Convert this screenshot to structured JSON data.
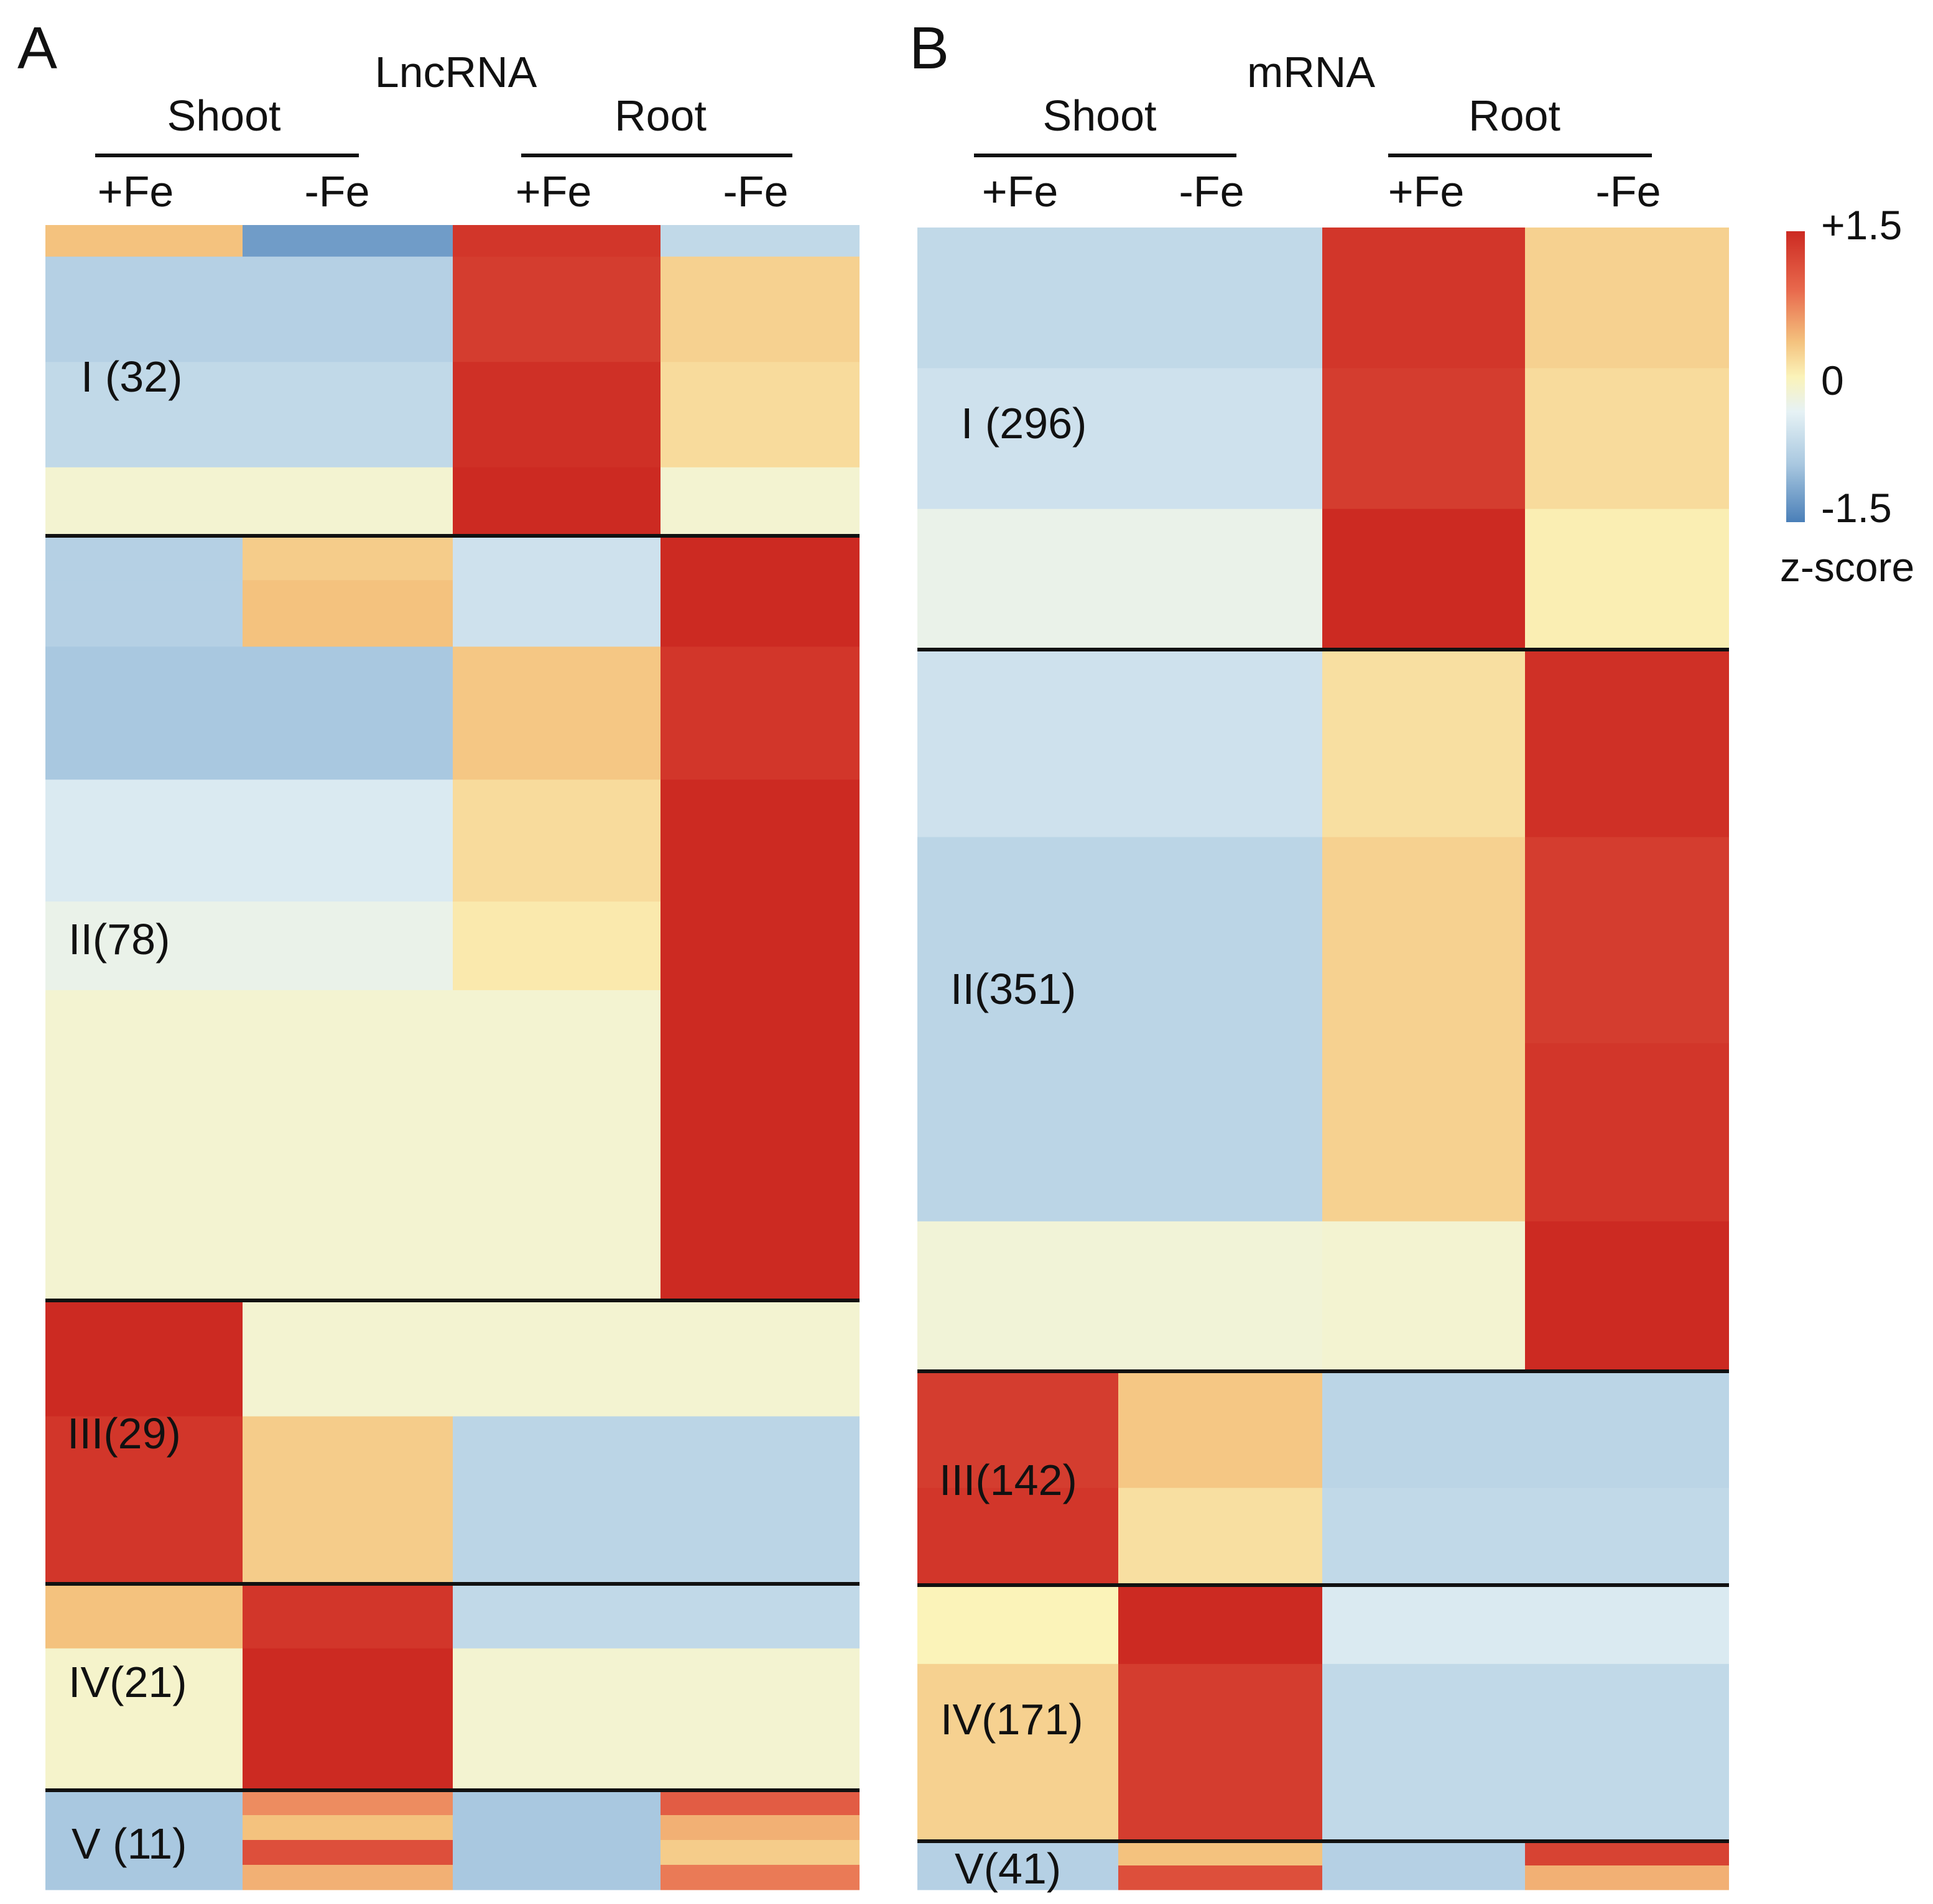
{
  "chart_data": [
    {
      "type": "heatmap",
      "panel_label": "A",
      "title": "LncRNA",
      "tissues": [
        "Shoot",
        "Root"
      ],
      "columns": [
        "+Fe",
        "-Fe",
        "+Fe",
        "-Fe"
      ],
      "clusters": [
        {
          "label": "I (32)",
          "count": 32,
          "values": [
            0.5,
            -1.3,
            1.4,
            0.2
          ]
        },
        {
          "label": "II(78)",
          "count": 78,
          "values": [
            -0.6,
            -0.6,
            0.2,
            1.5
          ]
        },
        {
          "label": "III(29)",
          "count": 29,
          "values": [
            1.5,
            0.3,
            -0.8,
            -0.8
          ]
        },
        {
          "label": "IV(21)",
          "count": 21,
          "values": [
            0.2,
            1.5,
            -0.5,
            -0.5
          ]
        },
        {
          "label": "V (11)",
          "count": 11,
          "values": [
            -1.0,
            1.0,
            -1.0,
            1.0
          ]
        }
      ],
      "rows": [
        {
          "cluster": 0,
          "weight": 12,
          "values": [
            0.5,
            -1.3,
            1.4,
            -0.8
          ]
        },
        {
          "cluster": 0,
          "weight": 40,
          "values": [
            -0.9,
            -0.9,
            1.35,
            0.35
          ]
        },
        {
          "cluster": 0,
          "weight": 40,
          "values": [
            -0.8,
            -0.8,
            1.45,
            0.25
          ]
        },
        {
          "cluster": 0,
          "weight": 26,
          "values": [
            -0.2,
            -0.2,
            1.5,
            -0.2
          ]
        },
        {
          "cluster": 1,
          "weight": 20,
          "values": [
            -0.9,
            0.4,
            -0.7,
            1.5
          ]
        },
        {
          "cluster": 1,
          "weight": 30,
          "values": [
            -0.9,
            0.5,
            -0.7,
            1.5
          ]
        },
        {
          "cluster": 1,
          "weight": 60,
          "values": [
            -1.0,
            -1.0,
            0.45,
            1.4
          ]
        },
        {
          "cluster": 1,
          "weight": 55,
          "values": [
            -0.6,
            -0.6,
            0.25,
            1.5
          ]
        },
        {
          "cluster": 1,
          "weight": 40,
          "values": [
            -0.4,
            -0.4,
            0.1,
            1.5
          ]
        },
        {
          "cluster": 1,
          "weight": 140,
          "values": [
            -0.2,
            -0.2,
            -0.2,
            1.5
          ]
        },
        {
          "cluster": 2,
          "weight": 45,
          "values": [
            1.5,
            -0.2,
            -0.2,
            -0.2
          ]
        },
        {
          "cluster": 2,
          "weight": 65,
          "values": [
            1.4,
            0.4,
            -0.85,
            -0.85
          ]
        },
        {
          "cluster": 3,
          "weight": 25,
          "values": [
            0.5,
            1.4,
            -0.8,
            -0.8
          ]
        },
        {
          "cluster": 3,
          "weight": 55,
          "values": [
            -0.15,
            1.5,
            -0.2,
            -0.2
          ]
        },
        {
          "cluster": 4,
          "weight": 10,
          "values": [
            -1.0,
            0.8,
            -1.0,
            1.1
          ]
        },
        {
          "cluster": 4,
          "weight": 10,
          "values": [
            -1.0,
            0.5,
            -1.0,
            0.6
          ]
        },
        {
          "cluster": 4,
          "weight": 10,
          "values": [
            -1.0,
            1.2,
            -1.0,
            0.4
          ]
        },
        {
          "cluster": 4,
          "weight": 10,
          "values": [
            -1.0,
            0.6,
            -1.0,
            0.9
          ]
        }
      ]
    },
    {
      "type": "heatmap",
      "panel_label": "B",
      "title": "mRNA",
      "tissues": [
        "Shoot",
        "Root"
      ],
      "columns": [
        "+Fe",
        "-Fe",
        "+Fe",
        "-Fe"
      ],
      "clusters": [
        {
          "label": "I (296)",
          "count": 296,
          "values": [
            -0.8,
            -0.8,
            1.4,
            0.3
          ]
        },
        {
          "label": "II(351)",
          "count": 351,
          "values": [
            -0.7,
            -0.7,
            0.3,
            1.5
          ]
        },
        {
          "label": "III(142)",
          "count": 142,
          "values": [
            1.4,
            0.4,
            -0.8,
            -0.8
          ]
        },
        {
          "label": "IV(171)",
          "count": 171,
          "values": [
            0.3,
            1.5,
            -0.7,
            -0.7
          ]
        },
        {
          "label": "V(41)",
          "count": 41,
          "values": [
            -0.7,
            0.8,
            -0.8,
            1.2
          ]
        }
      ],
      "rows": [
        {
          "cluster": 0,
          "weight": 70,
          "values": [
            -0.8,
            -0.8,
            1.4,
            0.35
          ]
        },
        {
          "cluster": 0,
          "weight": 70,
          "values": [
            -0.7,
            -0.7,
            1.35,
            0.25
          ]
        },
        {
          "cluster": 0,
          "weight": 70,
          "values": [
            -0.4,
            -0.4,
            1.5,
            0.05
          ]
        },
        {
          "cluster": 1,
          "weight": 100,
          "values": [
            -0.7,
            -0.7,
            0.2,
            1.45
          ]
        },
        {
          "cluster": 1,
          "weight": 110,
          "values": [
            -0.85,
            -0.85,
            0.35,
            1.35
          ]
        },
        {
          "cluster": 1,
          "weight": 95,
          "values": [
            -0.85,
            -0.85,
            0.35,
            1.4
          ]
        },
        {
          "cluster": 1,
          "weight": 80,
          "values": [
            -0.25,
            -0.25,
            -0.2,
            1.5
          ]
        },
        {
          "cluster": 2,
          "weight": 60,
          "values": [
            1.35,
            0.45,
            -0.85,
            -0.85
          ]
        },
        {
          "cluster": 2,
          "weight": 50,
          "values": [
            1.4,
            0.2,
            -0.8,
            -0.8
          ]
        },
        {
          "cluster": 3,
          "weight": 40,
          "values": [
            0.0,
            1.5,
            -0.6,
            -0.6
          ]
        },
        {
          "cluster": 3,
          "weight": 90,
          "values": [
            0.35,
            1.35,
            -0.8,
            -0.8
          ]
        },
        {
          "cluster": 4,
          "weight": 14,
          "values": [
            -0.9,
            0.5,
            -0.9,
            1.3
          ]
        },
        {
          "cluster": 4,
          "weight": 14,
          "values": [
            -0.9,
            1.2,
            -0.9,
            0.6
          ]
        }
      ]
    }
  ],
  "legend": {
    "max_label": "+1.5",
    "mid_label": "0",
    "min_label": "-1.5",
    "title": "z-score",
    "colors": [
      "#4a7fb8",
      "#a9c8e0",
      "#e6f2f5",
      "#fbf3b9",
      "#f4c27e",
      "#e8684c",
      "#cc2a22"
    ]
  }
}
